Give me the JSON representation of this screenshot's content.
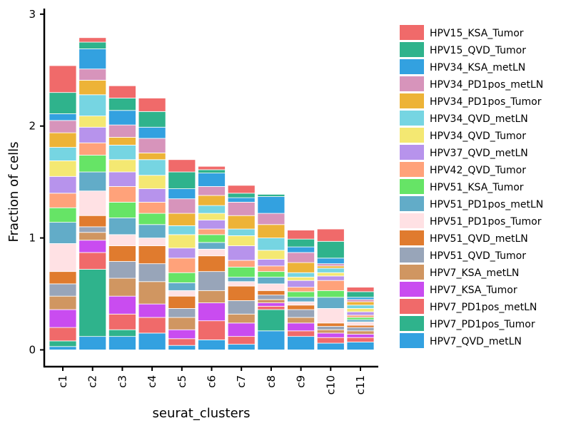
{
  "chart_data": {
    "type": "bar",
    "stacked": true,
    "xlabel": "seurat_clusters",
    "ylabel": "Fraction of cells",
    "ylim": [
      -0.15,
      3.05
    ],
    "yticks": [
      0,
      1,
      2,
      3
    ],
    "categories": [
      "c1",
      "c2",
      "c3",
      "c4",
      "c5",
      "c6",
      "c7",
      "c8",
      "c9",
      "c10",
      "c11"
    ],
    "legend_position": "right",
    "series": [
      {
        "name": "HPV7_QVD_metLN",
        "color": "#33A1E0",
        "values": [
          0.03,
          0.12,
          0.12,
          0.15,
          0.04,
          0.09,
          0.05,
          0.17,
          0.12,
          0.06,
          0.07
        ]
      },
      {
        "name": "HPV7_PD1pos_Tumor",
        "color": "#2FB38C",
        "values": [
          0.05,
          0.6,
          0.06,
          0.0,
          0.0,
          0.0,
          0.0,
          0.19,
          0.0,
          0.0,
          0.0
        ]
      },
      {
        "name": "HPV7_PD1pos_metLN",
        "color": "#F06A6A",
        "values": [
          0.12,
          0.15,
          0.14,
          0.14,
          0.06,
          0.17,
          0.07,
          0.03,
          0.05,
          0.05,
          0.04
        ]
      },
      {
        "name": "HPV7_KSA_Tumor",
        "color": "#C94CF0",
        "values": [
          0.16,
          0.11,
          0.16,
          0.12,
          0.08,
          0.16,
          0.12,
          0.03,
          0.07,
          0.04,
          0.03
        ]
      },
      {
        "name": "HPV7_KSA_metLN",
        "color": "#D09661",
        "values": [
          0.12,
          0.07,
          0.16,
          0.2,
          0.11,
          0.11,
          0.08,
          0.03,
          0.05,
          0.03,
          0.03
        ]
      },
      {
        "name": "HPV51_QVD_Tumor",
        "color": "#98A5B9",
        "values": [
          0.11,
          0.05,
          0.15,
          0.16,
          0.08,
          0.17,
          0.12,
          0.04,
          0.07,
          0.03,
          0.03
        ]
      },
      {
        "name": "HPV51_QVD_metLN",
        "color": "#E07B2E",
        "values": [
          0.11,
          0.1,
          0.14,
          0.16,
          0.11,
          0.14,
          0.13,
          0.04,
          0.04,
          0.03,
          0.02
        ]
      },
      {
        "name": "HPV51_PD1pos_Tumor",
        "color": "#FFE1E4",
        "values": [
          0.25,
          0.22,
          0.1,
          0.07,
          0.05,
          0.06,
          0.04,
          0.06,
          0.03,
          0.13,
          0.03
        ]
      },
      {
        "name": "HPV51_PD1pos_metLN",
        "color": "#62ACC8",
        "values": [
          0.19,
          0.17,
          0.15,
          0.12,
          0.07,
          0.06,
          0.04,
          0.06,
          0.04,
          0.1,
          0.02
        ]
      },
      {
        "name": "HPV51_KSA_Tumor",
        "color": "#66E466",
        "values": [
          0.13,
          0.15,
          0.14,
          0.1,
          0.09,
          0.07,
          0.09,
          0.05,
          0.05,
          0.06,
          0.02
        ]
      },
      {
        "name": "HPV42_QVD_Tumor",
        "color": "#FFA27A",
        "values": [
          0.13,
          0.11,
          0.14,
          0.1,
          0.13,
          0.05,
          0.06,
          0.05,
          0.04,
          0.09,
          0.02
        ]
      },
      {
        "name": "HPV37_QVD_metLN",
        "color": "#B793EC",
        "values": [
          0.15,
          0.14,
          0.13,
          0.12,
          0.09,
          0.08,
          0.13,
          0.06,
          0.06,
          0.04,
          0.03
        ]
      },
      {
        "name": "HPV34_QVD_Tumor",
        "color": "#F4E872",
        "values": [
          0.14,
          0.1,
          0.11,
          0.12,
          0.12,
          0.06,
          0.09,
          0.08,
          0.03,
          0.03,
          0.03
        ]
      },
      {
        "name": "HPV34_QVD_metLN",
        "color": "#76D5E2",
        "values": [
          0.12,
          0.19,
          0.13,
          0.14,
          0.08,
          0.07,
          0.06,
          0.11,
          0.04,
          0.04,
          0.03
        ]
      },
      {
        "name": "HPV34_PD1pos_Tumor",
        "color": "#EDB337",
        "values": [
          0.13,
          0.13,
          0.07,
          0.06,
          0.11,
          0.09,
          0.12,
          0.12,
          0.09,
          0.02,
          0.03
        ]
      },
      {
        "name": "HPV34_PD1pos_metLN",
        "color": "#D794BB",
        "values": [
          0.11,
          0.1,
          0.11,
          0.13,
          0.13,
          0.08,
          0.12,
          0.1,
          0.09,
          0.02,
          0.02
        ]
      },
      {
        "name": "HPV34_KSA_metLN",
        "color": "#33A1E0",
        "values": [
          0.06,
          0.18,
          0.13,
          0.1,
          0.09,
          0.12,
          0.04,
          0.15,
          0.05,
          0.05,
          0.02
        ]
      },
      {
        "name": "HPV15_QVD_Tumor",
        "color": "#2FB38C",
        "values": [
          0.19,
          0.06,
          0.11,
          0.14,
          0.15,
          0.03,
          0.04,
          0.02,
          0.07,
          0.15,
          0.05
        ]
      },
      {
        "name": "HPV15_KSA_Tumor",
        "color": "#F06A6A",
        "values": [
          0.24,
          0.04,
          0.11,
          0.12,
          0.11,
          0.03,
          0.07,
          0.0,
          0.08,
          0.11,
          0.04
        ]
      }
    ]
  }
}
